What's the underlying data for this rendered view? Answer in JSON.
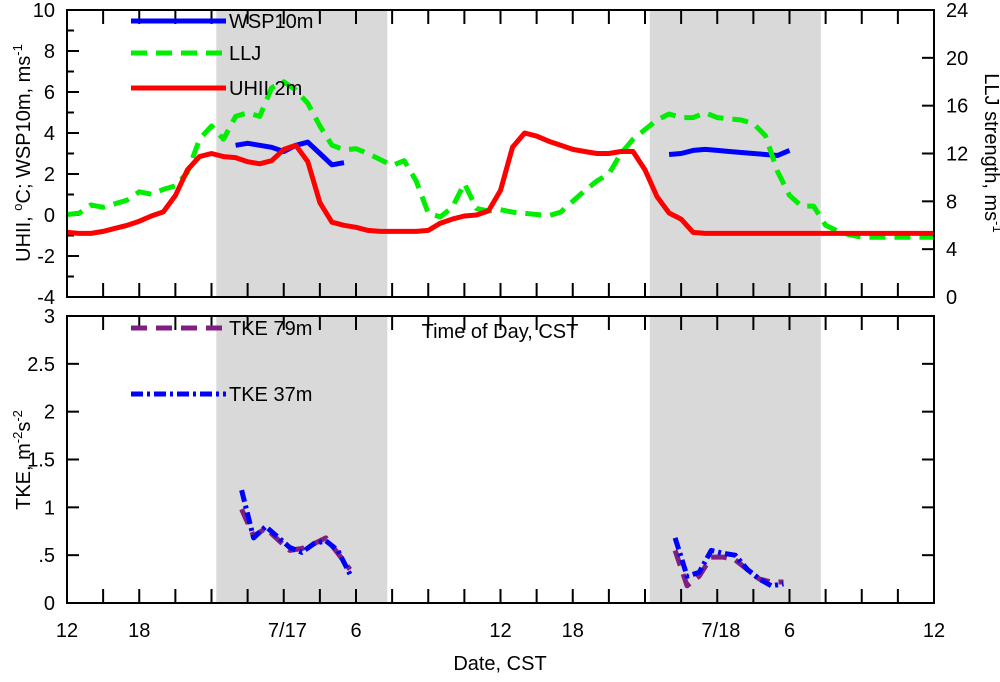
{
  "chart_data": [
    {
      "type": "line",
      "panel": "top",
      "xlabel": "",
      "ylabel": "UHII, °C; WSP10m, ms-1",
      "ylabel_parts": {
        "main": "UHII, ",
        "deg": "o",
        "mid": "C; WSP10m, ms",
        "sup": "-1"
      },
      "y2label": "LLJ strength, ms-1",
      "y2label_parts": {
        "main": "LLJ strength, ms",
        "sup": "-1"
      },
      "xlim": [
        12,
        84
      ],
      "ylim": [
        -4,
        10
      ],
      "y2lim": [
        0,
        24
      ],
      "yticks": [
        -4,
        -2,
        0,
        2,
        4,
        6,
        8,
        10
      ],
      "yticklabels": [
        "-4",
        "-2",
        "0",
        "2",
        "4",
        "6",
        "8",
        "10"
      ],
      "y2ticks": [
        0,
        4,
        8,
        12,
        16,
        20,
        24
      ],
      "y2ticklabels": [
        "0",
        "4",
        "8",
        "12",
        "16",
        "20",
        "24"
      ],
      "shaded_ranges": [
        [
          24.4,
          38.6
        ],
        [
          60.4,
          74.6
        ]
      ],
      "legend": [
        "WSP10m",
        "LLJ",
        "UHII 2m"
      ],
      "series": [
        {
          "name": "WSP10m",
          "axis": "left",
          "color": "#0000ff",
          "style": "solid",
          "segments": [
            {
              "x": [
                26,
                27,
                29,
                30,
                31,
                32,
                33,
                34,
                35,
                36,
                37,
                38,
                39,
                40
              ],
              "y": [
                3.4,
                3.5,
                3.3,
                3.1,
                3.4,
                3.55,
                3.0,
                2.45,
                2.55,
                null,
                null,
                null,
                null,
                null
              ]
            },
            {
              "x": [
                62,
                63,
                64,
                65,
                66,
                67,
                68,
                69,
                70,
                71,
                72,
                73,
                74
              ],
              "y": [
                2.95,
                3.0,
                3.15,
                3.2,
                3.15,
                3.1,
                3.05,
                3.0,
                2.95,
                2.9,
                3.15,
                null,
                null
              ]
            }
          ]
        },
        {
          "name": "LLJ",
          "axis": "right",
          "color": "#00ee00",
          "style": "dashed",
          "x": [
            12,
            13,
            14,
            15,
            16,
            17,
            18,
            19,
            20,
            21,
            22,
            23,
            24,
            25,
            26,
            27,
            28,
            29,
            30,
            31,
            32,
            33,
            34,
            35,
            36,
            37,
            38,
            39,
            40,
            41,
            42,
            43,
            44,
            45,
            46,
            47,
            48,
            49,
            50,
            51,
            52,
            53,
            54,
            55,
            56,
            57,
            58,
            59,
            60,
            61,
            62,
            63,
            64,
            65,
            66,
            67,
            68,
            69,
            70,
            71,
            72,
            73,
            74,
            75,
            76,
            77,
            78,
            79,
            80,
            81,
            82,
            83,
            84
          ],
          "y": [
            6.9,
            7.0,
            7.7,
            7.5,
            7.8,
            8.1,
            8.8,
            8.6,
            9.0,
            9.3,
            10.4,
            13.2,
            14.3,
            13.2,
            15.1,
            15.4,
            15.1,
            17.5,
            18.0,
            17.3,
            16.2,
            14.3,
            12.7,
            12.3,
            12.4,
            12.0,
            11.5,
            11.0,
            11.4,
            9.7,
            7.0,
            6.7,
            7.5,
            9.5,
            7.4,
            7.2,
            7.3,
            7.1,
            7.0,
            6.9,
            6.8,
            7.1,
            8.0,
            8.9,
            9.7,
            10.3,
            12.0,
            13.2,
            14.0,
            14.8,
            15.3,
            15.0,
            15.0,
            15.4,
            15.0,
            14.9,
            14.8,
            14.5,
            13.5,
            10.5,
            8.5,
            7.6,
            7.6,
            6.0,
            5.5,
            5.2,
            5.0,
            5.0,
            5.0,
            5.0,
            5.0,
            5.0,
            5.0
          ]
        },
        {
          "name": "UHII 2m",
          "axis": "left",
          "color": "#ff0000",
          "style": "solid",
          "x": [
            12,
            13,
            14,
            15,
            16,
            17,
            18,
            19,
            20,
            21,
            22,
            23,
            24,
            25,
            26,
            27,
            28,
            29,
            30,
            31,
            32,
            33,
            34,
            35,
            36,
            37,
            38,
            39,
            40,
            41,
            42,
            43,
            44,
            45,
            46,
            47,
            48,
            49,
            50,
            51,
            52,
            53,
            54,
            55,
            56,
            57,
            58,
            59,
            60,
            61,
            62,
            63,
            64,
            65,
            66,
            67,
            68,
            69,
            70,
            71,
            72,
            73,
            74,
            75,
            76,
            77,
            78,
            79,
            80,
            81,
            82,
            83,
            84
          ],
          "y": [
            -0.85,
            -0.9,
            -0.9,
            -0.8,
            -0.65,
            -0.5,
            -0.3,
            -0.05,
            0.15,
            0.95,
            2.2,
            2.85,
            3.0,
            2.85,
            2.8,
            2.6,
            2.5,
            2.65,
            3.2,
            3.4,
            2.6,
            0.6,
            -0.35,
            -0.5,
            -0.6,
            -0.75,
            -0.8,
            -0.8,
            -0.8,
            -0.8,
            -0.75,
            -0.4,
            -0.2,
            -0.05,
            0.0,
            0.2,
            1.2,
            3.3,
            4.0,
            3.85,
            3.6,
            3.4,
            3.2,
            3.1,
            3.0,
            3.0,
            3.1,
            3.1,
            2.2,
            0.9,
            0.1,
            -0.2,
            -0.85,
            -0.9,
            -0.9,
            -0.9,
            -0.9,
            -0.9,
            -0.9,
            -0.9,
            -0.9,
            -0.9,
            -0.9,
            -0.9,
            -0.9,
            -0.9,
            -0.9,
            -0.9,
            -0.9,
            -0.9,
            -0.9,
            -0.9,
            -0.9
          ]
        }
      ]
    },
    {
      "type": "line",
      "panel": "bottom",
      "title": "Time of Day, CST",
      "xlabel": "Date, CST",
      "ylabel": "TKE, m-2s-2",
      "ylabel_parts": {
        "main": "TKE, m",
        "sup1": "-2",
        "mid": "s",
        "sup2": "-2"
      },
      "xlim": [
        12,
        84
      ],
      "ylim": [
        0,
        3
      ],
      "yticks": [
        0,
        0.5,
        1,
        1.5,
        2,
        2.5,
        3
      ],
      "yticklabels": [
        "0",
        ".5",
        "1",
        "1.5",
        "2",
        "2.5",
        "3"
      ],
      "xticks": [
        12,
        18,
        24,
        30,
        36,
        42,
        48,
        54,
        60,
        66,
        72,
        78,
        84
      ],
      "xticklabels": [
        {
          "x": 12,
          "label": "12"
        },
        {
          "x": 18,
          "label": "18"
        },
        {
          "x": 30.3,
          "label": "7/17"
        },
        {
          "x": 36,
          "label": "6"
        },
        {
          "x": 48,
          "label": "12"
        },
        {
          "x": 54,
          "label": "18"
        },
        {
          "x": 66.3,
          "label": "7/18"
        },
        {
          "x": 72,
          "label": "6"
        },
        {
          "x": 84,
          "label": "12"
        }
      ],
      "shaded_ranges": [
        [
          24.4,
          38.6
        ],
        [
          60.4,
          74.6
        ]
      ],
      "legend": [
        "TKE 79m",
        "TKE 37m"
      ],
      "series": [
        {
          "name": "TKE 79m",
          "color": "#7f1f7f",
          "style": "dashed",
          "segments": [
            {
              "x": [
                26.5,
                27.5,
                28.5,
                30.5,
                31.5,
                32.5,
                33.5,
                34.5,
                35.5,
                36.5,
                37.5
              ],
              "y": [
                0.98,
                0.7,
                0.78,
                0.55,
                0.57,
                0.62,
                0.68,
                0.52,
                0.35,
                null,
                null
              ]
            },
            {
              "x": [
                62.5,
                63.5,
                64.5,
                65.5,
                66.5,
                67.5,
                68.5,
                69.5,
                70.5,
                71.5,
                72.5
              ],
              "y": [
                0.55,
                0.18,
                0.28,
                0.48,
                0.48,
                0.45,
                0.35,
                0.25,
                0.22,
                0.22,
                null
              ]
            }
          ]
        },
        {
          "name": "TKE 37m",
          "color": "#0000ff",
          "style": "dashdot",
          "segments": [
            {
              "x": [
                26.5,
                27.5,
                28.5,
                30.5,
                31.5,
                32.5,
                33.5,
                34.5,
                35.5,
                36.5,
                37.5
              ],
              "y": [
                1.18,
                0.68,
                0.8,
                0.58,
                0.53,
                0.62,
                0.65,
                0.55,
                0.3,
                null,
                null
              ]
            },
            {
              "x": [
                62.5,
                63.5,
                64.5,
                65.5,
                66.5,
                67.5,
                68.5,
                69.5,
                70.5,
                71.5,
                72.5
              ],
              "y": [
                0.68,
                0.28,
                0.32,
                0.55,
                0.52,
                0.5,
                0.35,
                0.25,
                0.18,
                0.2,
                null
              ]
            }
          ]
        }
      ]
    }
  ]
}
